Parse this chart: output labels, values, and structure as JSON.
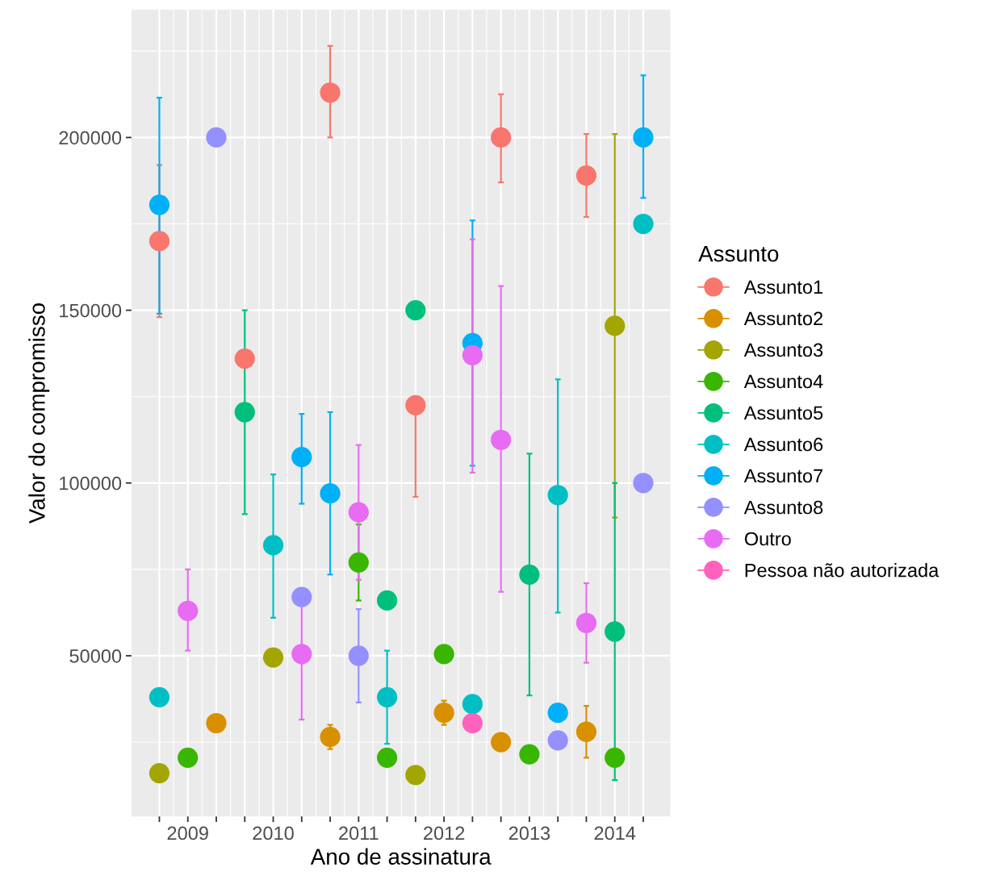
{
  "chart_data": {
    "type": "scatter",
    "xlabel": "Ano de assinatura",
    "ylabel": "Valor do compromisso",
    "legend_title": "Assunto",
    "categories": [
      null,
      "2009",
      null,
      null,
      "2010",
      null,
      null,
      "2011",
      null,
      null,
      "2012",
      null,
      null,
      "2013",
      null,
      null,
      "2014",
      null
    ],
    "ylim": [
      3500,
      237000
    ],
    "yticks": [
      50000,
      100000,
      150000,
      200000
    ],
    "grid": true,
    "legend": "right",
    "marker": "circle",
    "series": [
      {
        "name": "Assunto1",
        "color": "#f8766d",
        "values": [
          170000,
          null,
          null,
          136000,
          null,
          null,
          213000,
          null,
          null,
          122500,
          null,
          null,
          200000,
          null,
          null,
          189000,
          null,
          null
        ],
        "errors": [
          [
            148000,
            192000
          ],
          null,
          null,
          null,
          null,
          null,
          [
            200000,
            226500
          ],
          null,
          null,
          [
            96000,
            122500
          ],
          null,
          null,
          [
            187000,
            212500
          ],
          null,
          null,
          [
            177000,
            201000
          ],
          null,
          null
        ]
      },
      {
        "name": "Assunto2",
        "color": "#d89000",
        "values": [
          null,
          null,
          30500,
          null,
          null,
          null,
          26500,
          null,
          null,
          null,
          33500,
          null,
          25000,
          null,
          null,
          28000,
          null,
          null
        ],
        "errors": [
          null,
          null,
          null,
          null,
          null,
          null,
          [
            23000,
            30000
          ],
          null,
          null,
          null,
          [
            30000,
            37000
          ],
          null,
          null,
          null,
          null,
          [
            20500,
            35500
          ],
          null,
          null
        ]
      },
      {
        "name": "Assunto3",
        "color": "#a3a500",
        "values": [
          16000,
          null,
          null,
          null,
          49500,
          null,
          null,
          null,
          null,
          15500,
          null,
          null,
          null,
          null,
          null,
          null,
          145500,
          null
        ],
        "errors": [
          null,
          null,
          null,
          null,
          null,
          null,
          null,
          null,
          null,
          null,
          null,
          null,
          null,
          null,
          null,
          null,
          [
            90000,
            201000
          ],
          null
        ]
      },
      {
        "name": "Assunto4",
        "color": "#39b600",
        "values": [
          null,
          20500,
          null,
          null,
          null,
          null,
          null,
          77000,
          20500,
          null,
          50500,
          null,
          null,
          21500,
          null,
          null,
          20500,
          null
        ],
        "errors": [
          null,
          null,
          null,
          null,
          null,
          null,
          null,
          [
            66000,
            88000
          ],
          null,
          null,
          null,
          null,
          null,
          null,
          null,
          null,
          null,
          null
        ]
      },
      {
        "name": "Assunto5",
        "color": "#00bf7d",
        "values": [
          null,
          null,
          null,
          120500,
          null,
          null,
          null,
          null,
          66000,
          150000,
          null,
          null,
          null,
          73500,
          null,
          null,
          57000,
          null
        ],
        "errors": [
          null,
          null,
          null,
          [
            91000,
            150000
          ],
          null,
          null,
          null,
          null,
          null,
          null,
          null,
          null,
          null,
          [
            38500,
            108500
          ],
          null,
          null,
          [
            14000,
            100000
          ],
          null
        ]
      },
      {
        "name": "Assunto6",
        "color": "#00bfc4",
        "values": [
          38000,
          null,
          null,
          null,
          82000,
          null,
          null,
          null,
          38000,
          null,
          null,
          36000,
          null,
          null,
          96500,
          null,
          null,
          175000
        ],
        "errors": [
          null,
          null,
          null,
          null,
          [
            61000,
            102500
          ],
          null,
          null,
          null,
          [
            24500,
            51500
          ],
          null,
          null,
          null,
          null,
          null,
          [
            62500,
            130000
          ],
          null,
          null,
          null
        ]
      },
      {
        "name": "Assunto7",
        "color": "#00b0f6",
        "values": [
          180500,
          null,
          null,
          null,
          null,
          107500,
          97000,
          null,
          null,
          null,
          null,
          140500,
          null,
          null,
          33500,
          null,
          null,
          200000
        ],
        "errors": [
          [
            149000,
            211500
          ],
          null,
          null,
          null,
          null,
          [
            94000,
            120000
          ],
          [
            73500,
            120500
          ],
          null,
          null,
          null,
          null,
          [
            105000,
            176000
          ],
          null,
          null,
          null,
          null,
          null,
          [
            182500,
            218000
          ]
        ]
      },
      {
        "name": "Assunto8",
        "color": "#9590ff",
        "values": [
          null,
          null,
          200000,
          null,
          null,
          67000,
          null,
          50000,
          null,
          null,
          null,
          null,
          null,
          null,
          25500,
          null,
          null,
          100000
        ],
        "errors": [
          null,
          null,
          null,
          null,
          null,
          null,
          null,
          [
            36500,
            63500
          ],
          null,
          null,
          null,
          null,
          null,
          null,
          null,
          null,
          null,
          null
        ]
      },
      {
        "name": "Outro",
        "color": "#e76bf3",
        "values": [
          null,
          63000,
          null,
          null,
          null,
          50500,
          null,
          91500,
          null,
          null,
          null,
          137000,
          112500,
          null,
          null,
          59500,
          null,
          null
        ],
        "errors": [
          null,
          [
            51500,
            75000
          ],
          null,
          null,
          null,
          [
            31500,
            69500
          ],
          null,
          [
            72000,
            111000
          ],
          null,
          null,
          null,
          [
            103000,
            170500
          ],
          [
            68500,
            157000
          ],
          null,
          null,
          [
            48000,
            71000
          ],
          null,
          null
        ]
      },
      {
        "name": "Pessoa não autorizada",
        "color": "#ff62bc",
        "values": [
          null,
          null,
          null,
          null,
          null,
          null,
          null,
          null,
          null,
          null,
          null,
          30500,
          null,
          null,
          null,
          null,
          null,
          null
        ]
      }
    ]
  }
}
